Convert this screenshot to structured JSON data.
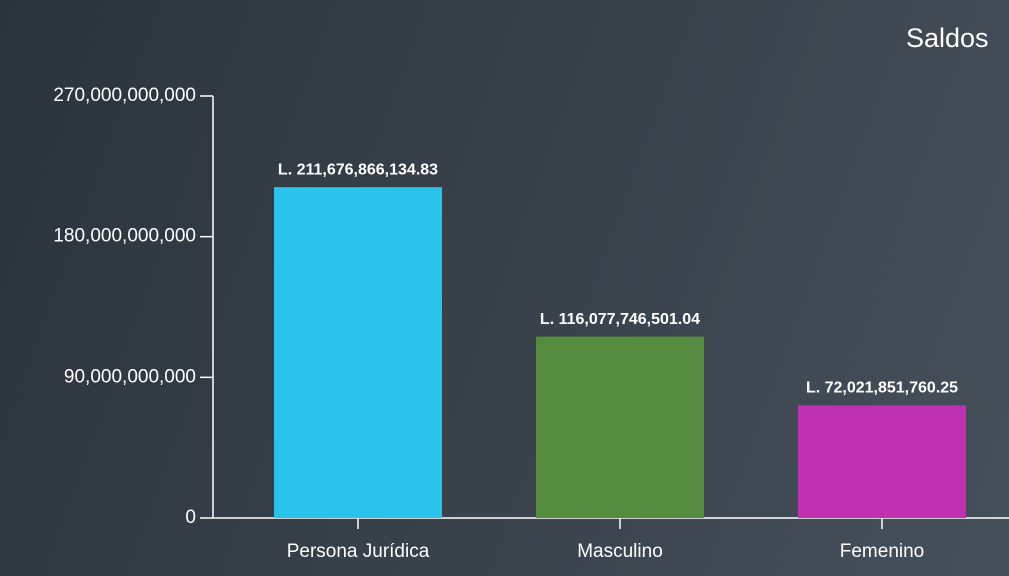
{
  "chart_data": {
    "type": "bar",
    "title": "Saldos",
    "categories": [
      "Persona Jurídica",
      "Masculino",
      "Femenino"
    ],
    "values": [
      211676866134.83,
      116077746501.04,
      72021851760.25
    ],
    "value_labels": [
      "L. 211,676,866,134.83",
      "L. 116,077,746,501.04",
      "L. 72,021,851,760.25"
    ],
    "colors": [
      "#29c3ec",
      "#548b3f",
      "#bf31b0"
    ],
    "ylim": [
      0,
      270000000000
    ],
    "yticks": [
      0,
      {
        "value": 90000000000,
        "label": "90,000,000,000"
      },
      {
        "value": 180000000000,
        "label": "180,000,000,000"
      },
      {
        "value": 270000000000,
        "label": "270,000,000,000"
      }
    ]
  }
}
